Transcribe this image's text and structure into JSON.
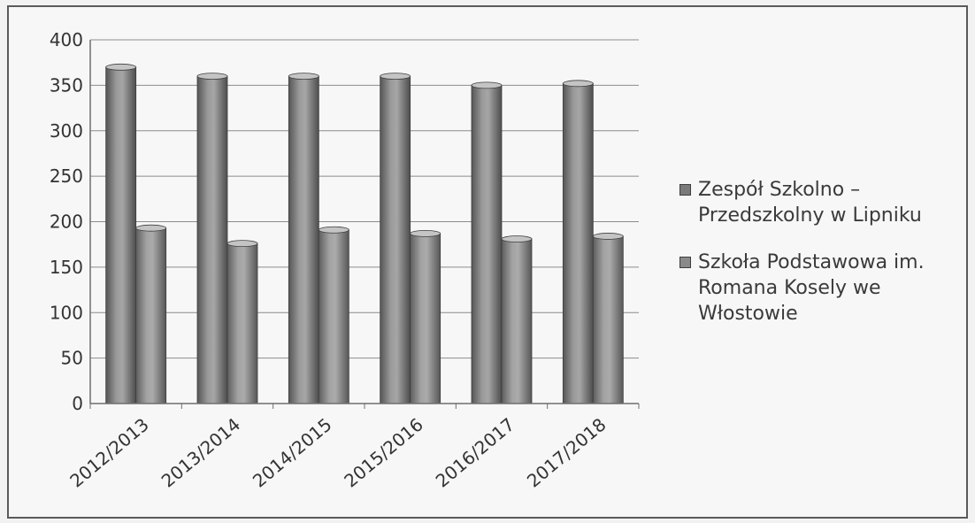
{
  "chart_data": {
    "type": "bar",
    "categories": [
      "2012/2013",
      "2013/2014",
      "2014/2015",
      "2015/2016",
      "2016/2017",
      "2017/2018"
    ],
    "series": [
      {
        "name": "Zespół Szkolno – Przedszkolny w Lipniku",
        "values": [
          370,
          360,
          360,
          360,
          350,
          352
        ],
        "color": "#7a7a7a"
      },
      {
        "name": "Szkoła Podstawowa im. Romana Kosely we Włostowie",
        "values": [
          193,
          176,
          191,
          187,
          181,
          184
        ],
        "color": "#8a8a8a"
      }
    ],
    "ylim": [
      0,
      400
    ],
    "yticks": [
      0,
      50,
      100,
      150,
      200,
      250,
      300,
      350,
      400
    ],
    "grid": true,
    "legend_position": "right",
    "title": "",
    "xlabel": "",
    "ylabel": ""
  },
  "legend": {
    "items": [
      {
        "label": "Zespół Szkolno –\nPrzedszkolny w Lipniku"
      },
      {
        "label": "Szkoła Podstawowa im.\nRomana Kosely we\nWłostowie"
      }
    ]
  }
}
